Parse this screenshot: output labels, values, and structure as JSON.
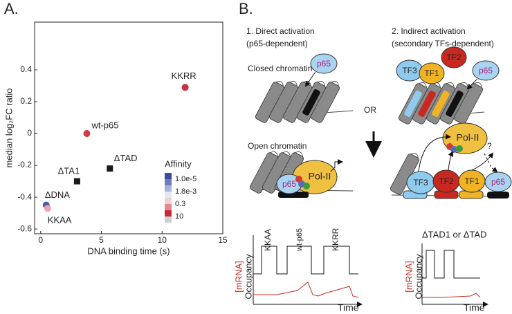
{
  "panel_labels": [
    "A.",
    "B."
  ],
  "chart_data": {
    "type": "scatter",
    "x_label": "DNA binding time (s)",
    "y_label": "median log₂FC ratio",
    "x": [
      11.9,
      3.8,
      5.7,
      3.0,
      0.46,
      0.57
    ],
    "values": [
      0.29,
      0.0,
      -0.22,
      -0.3,
      -0.45,
      -0.47
    ],
    "point_labels": [
      "KKRR",
      "wt-p65",
      "ΔTAD",
      "ΔTA1",
      "ΔDNA",
      "KKAA"
    ],
    "colors": [
      "#c9303e",
      "#d23a46",
      "#1a1a1a",
      "#1a1a1a",
      "#4a5aa8",
      "#eba3ae"
    ],
    "markers": [
      "circle",
      "circle",
      "square",
      "square",
      "circle",
      "circle"
    ],
    "xlim": [
      -0.5,
      15
    ],
    "xticks": [
      0,
      5,
      10,
      15
    ],
    "ylim": [
      -0.63,
      0.7
    ],
    "yticks": [
      -0.6,
      -0.4,
      -0.2,
      0,
      0.2,
      0.4
    ],
    "legend_title": "Affinity",
    "legend_labels": [
      "1.0e-5",
      "1.8e-3",
      "0.3",
      "10"
    ],
    "colorbar_colors": [
      "#3a4a9c",
      "#6e7cc0",
      "#a8b1dc",
      "#e4e6f3",
      "#f4d0d4",
      "#e48792",
      "#c52a39",
      "#cfcfcf"
    ]
  },
  "diagram": {
    "direct_title": "1. Direct activation",
    "direct_subtitle": "(p65-dependent)",
    "indirect_title": "2. Indirect activation",
    "indirect_subtitle": "(secondary TFs-dependent)",
    "closed_chromatin": "Closed chromatin",
    "open_chromatin": "Open chromatin",
    "or": "OR",
    "p65": "p65",
    "pol2": "Pol-II",
    "tf1": "TF1",
    "tf2": "TF2",
    "tf3": "TF3",
    "question": "?",
    "trace_labels": [
      "KKAA",
      "wt-p65",
      "KKRR"
    ],
    "trace_label_right": "ΔTAD1 or ΔTAD",
    "mrna": "[mRNA]",
    "occupancy": "Occupancy",
    "time": "Time"
  }
}
